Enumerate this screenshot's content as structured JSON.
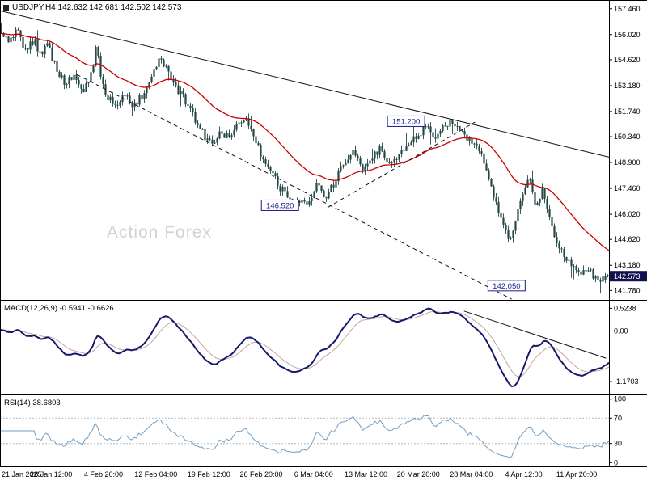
{
  "header": {
    "symbol_line": "USDJPY,H4 142.632 142.681 142.502 142.573"
  },
  "watermark": "Action Forex",
  "colors": {
    "background": "#ffffff",
    "border": "#000000",
    "candle": "#244747",
    "ma_line": "#cc0000",
    "trendline": "#111111",
    "macd_line": "#18186b",
    "macd_signal": "#c9a0a0",
    "rsi_line": "#6f9fc8",
    "grid_dotted": "#b5b5b5",
    "annotation": "#1c1c8f",
    "price_tag_bg": "#11114f",
    "price_tag_text": "#ffffff",
    "watermark": "#d2d2d2",
    "axis_text": "#000000"
  },
  "chart_data": {
    "type": "candlestick",
    "symbol": "USDJPY",
    "timeframe": "H4",
    "ohlc_current": {
      "open": 142.632,
      "high": 142.681,
      "low": 142.502,
      "close": 142.573
    },
    "ylim": [
      141.78,
      157.46
    ],
    "price_axis_labels": [
      "157.460",
      "156.020",
      "154.620",
      "153.180",
      "151.740",
      "150.340",
      "148.900",
      "147.460",
      "146.020",
      "144.620",
      "143.180",
      "141.780"
    ],
    "x_axis_labels": [
      {
        "label": "21 Jan 2025",
        "t": 0.002,
        "align": "start"
      },
      {
        "label": "28 Jan 12:00",
        "t": 0.084,
        "align": "middle"
      },
      {
        "label": "4 Feb 20:00",
        "t": 0.17,
        "align": "middle"
      },
      {
        "label": "12 Feb 04:00",
        "t": 0.256,
        "align": "middle"
      },
      {
        "label": "19 Feb 12:00",
        "t": 0.343,
        "align": "middle"
      },
      {
        "label": "26 Feb 20:00",
        "t": 0.429,
        "align": "middle"
      },
      {
        "label": "6 Mar 04:00",
        "t": 0.515,
        "align": "middle"
      },
      {
        "label": "13 Mar 12:00",
        "t": 0.601,
        "align": "middle"
      },
      {
        "label": "20 Mar 20:00",
        "t": 0.687,
        "align": "middle"
      },
      {
        "label": "28 Mar 04:00",
        "t": 0.774,
        "align": "middle"
      },
      {
        "label": "4 Apr 12:00",
        "t": 0.86,
        "align": "middle"
      },
      {
        "label": "11 Apr 20:00",
        "t": 0.947,
        "align": "middle"
      }
    ],
    "price_path": [
      [
        0.0,
        156.2
      ],
      [
        0.012,
        155.5
      ],
      [
        0.025,
        156.3
      ],
      [
        0.04,
        155.1
      ],
      [
        0.055,
        155.7
      ],
      [
        0.065,
        154.9
      ],
      [
        0.075,
        155.6
      ],
      [
        0.09,
        154.2
      ],
      [
        0.105,
        153.2
      ],
      [
        0.12,
        153.9
      ],
      [
        0.135,
        152.9
      ],
      [
        0.15,
        154.0
      ],
      [
        0.158,
        155.6
      ],
      [
        0.165,
        153.6
      ],
      [
        0.175,
        152.6
      ],
      [
        0.19,
        152.1
      ],
      [
        0.205,
        152.8
      ],
      [
        0.215,
        151.9
      ],
      [
        0.23,
        152.5
      ],
      [
        0.245,
        153.4
      ],
      [
        0.262,
        154.7
      ],
      [
        0.275,
        153.9
      ],
      [
        0.29,
        153.0
      ],
      [
        0.305,
        152.3
      ],
      [
        0.32,
        151.2
      ],
      [
        0.335,
        150.4
      ],
      [
        0.35,
        149.8
      ],
      [
        0.362,
        150.7
      ],
      [
        0.375,
        150.2
      ],
      [
        0.39,
        151.0
      ],
      [
        0.402,
        151.5
      ],
      [
        0.415,
        150.3
      ],
      [
        0.43,
        149.3
      ],
      [
        0.445,
        148.3
      ],
      [
        0.46,
        147.5
      ],
      [
        0.475,
        147.0
      ],
      [
        0.49,
        146.8
      ],
      [
        0.505,
        146.6
      ],
      [
        0.52,
        147.6
      ],
      [
        0.535,
        146.9
      ],
      [
        0.55,
        147.8
      ],
      [
        0.565,
        148.9
      ],
      [
        0.58,
        149.4
      ],
      [
        0.595,
        148.6
      ],
      [
        0.61,
        149.1
      ],
      [
        0.625,
        149.7
      ],
      [
        0.64,
        148.8
      ],
      [
        0.655,
        149.3
      ],
      [
        0.67,
        150.0
      ],
      [
        0.685,
        150.4
      ],
      [
        0.7,
        150.8
      ],
      [
        0.715,
        150.4
      ],
      [
        0.73,
        151.0
      ],
      [
        0.745,
        151.2
      ],
      [
        0.76,
        150.6
      ],
      [
        0.775,
        150.0
      ],
      [
        0.79,
        149.6
      ],
      [
        0.8,
        148.5
      ],
      [
        0.812,
        147.0
      ],
      [
        0.825,
        145.8
      ],
      [
        0.838,
        144.7
      ],
      [
        0.85,
        145.9
      ],
      [
        0.862,
        147.3
      ],
      [
        0.872,
        148.1
      ],
      [
        0.882,
        146.2
      ],
      [
        0.892,
        147.5
      ],
      [
        0.902,
        146.0
      ],
      [
        0.912,
        144.9
      ],
      [
        0.925,
        143.8
      ],
      [
        0.94,
        143.2
      ],
      [
        0.955,
        142.6
      ],
      [
        0.97,
        142.9
      ],
      [
        0.985,
        142.2
      ],
      [
        1.0,
        142.573
      ]
    ],
    "moving_average": {
      "type": "EMA",
      "period": 34,
      "color_role": "ma_line"
    },
    "annotations": [
      {
        "name": "resistance-price-label",
        "text": "151.200",
        "t": 0.7,
        "price": 151.2
      },
      {
        "name": "support-price-label",
        "text": "146.520",
        "t": 0.493,
        "price": 146.52
      },
      {
        "name": "low-price-label",
        "text": "142.050",
        "t": 0.865,
        "price": 142.05
      }
    ],
    "current_price_tag": {
      "text": "142.573",
      "price": 142.573
    },
    "trendlines": [
      {
        "pane": "price",
        "style": "solid",
        "from": [
          0.0,
          157.35
        ],
        "to": [
          1.0,
          149.2
        ]
      },
      {
        "pane": "price",
        "style": "dashed",
        "from": [
          0.126,
          153.8
        ],
        "to": [
          0.84,
          141.3
        ]
      },
      {
        "pane": "price",
        "style": "dashed",
        "from": [
          0.538,
          146.4
        ],
        "to": [
          0.78,
          151.15
        ]
      },
      {
        "pane": "macd",
        "style": "solid",
        "from": [
          0.762,
          0.46
        ],
        "to": [
          0.995,
          -0.63
        ]
      }
    ],
    "macd": {
      "label": "MACD(12,26,9) -0.5941 -0.6626",
      "params": [
        12,
        26,
        9
      ],
      "value": -0.5941,
      "signal_value": -0.6626,
      "axis_labels": [
        "0.5238",
        "0.00",
        "-1.1703"
      ],
      "plot_range": [
        -1.28,
        0.52
      ]
    },
    "rsi": {
      "label": "RSI(14) 38.6803",
      "period": 14,
      "value": 38.6803,
      "axis_labels": [
        "100",
        "70",
        "30",
        "0"
      ],
      "guide_levels": [
        30,
        70
      ]
    }
  }
}
